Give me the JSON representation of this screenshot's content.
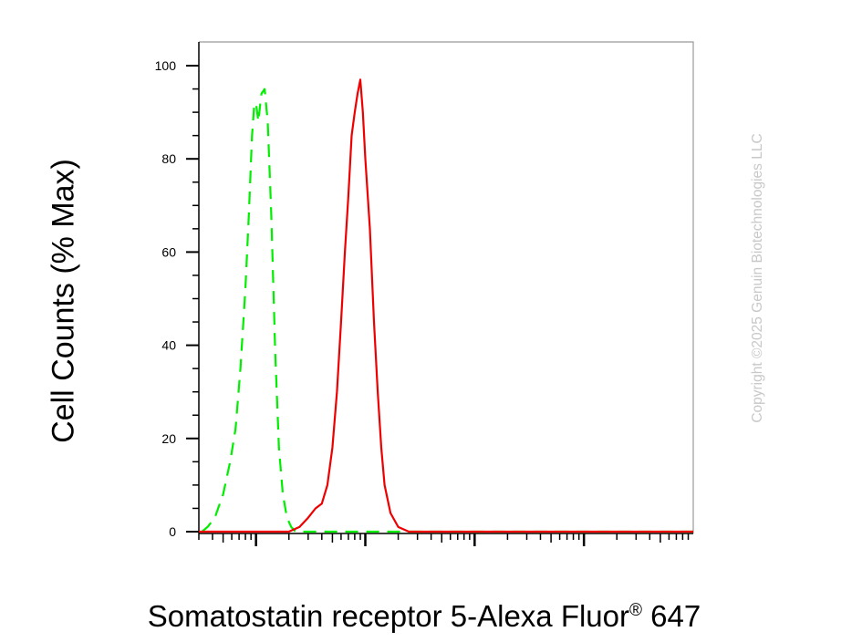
{
  "chart_data": {
    "type": "line",
    "title": "",
    "ylabel": "Cell Counts (% Max)",
    "xlabel": {
      "text": "Somatostatin receptor 5-Alexa Fluor",
      "registered": "®",
      "suffix": "647"
    },
    "ylim": [
      0,
      105
    ],
    "yticks": [
      "0",
      "20",
      "40",
      "60",
      "80",
      "100"
    ],
    "xscale": "log",
    "xlim": [
      0.3,
      10000
    ],
    "xtick_labels": [],
    "grid": false,
    "legend": "none",
    "series": [
      {
        "color": "#00ee00",
        "dash": "dashed",
        "x": [
          0.32,
          0.36,
          0.42,
          0.5,
          0.58,
          0.65,
          0.72,
          0.8,
          0.86,
          0.92,
          0.96,
          1.0,
          1.05,
          1.12,
          1.2,
          1.28,
          1.38,
          1.5,
          1.62,
          1.76,
          1.92,
          2.1,
          2.3,
          2.5,
          3,
          4,
          6,
          10,
          30,
          100,
          1000,
          10000
        ],
        "y": [
          0,
          1,
          3,
          8,
          15,
          22,
          35,
          52,
          68,
          85,
          91,
          92,
          88,
          94,
          95,
          88,
          68,
          38,
          18,
          8,
          3,
          1,
          0,
          0,
          0,
          0,
          0,
          0,
          0,
          0,
          0,
          0
        ]
      },
      {
        "color": "#ee0000",
        "dash": "solid",
        "x": [
          0.3,
          1,
          2,
          2.5,
          3,
          3.5,
          4,
          4.5,
          5,
          5.5,
          6,
          6.5,
          7,
          7.5,
          8,
          8.5,
          9,
          9.5,
          10,
          11,
          12,
          13,
          14,
          15,
          17,
          20,
          25,
          30,
          50,
          100,
          1000,
          10000
        ],
        "y": [
          0,
          0,
          0,
          1,
          3,
          5,
          6,
          10,
          18,
          30,
          45,
          60,
          72,
          85,
          90,
          94,
          97,
          90,
          80,
          65,
          45,
          30,
          18,
          10,
          4,
          1,
          0,
          0,
          0,
          0,
          0,
          0
        ]
      }
    ]
  },
  "watermark": "Copyright ©2025 Genuin Biotechnologies LLC"
}
